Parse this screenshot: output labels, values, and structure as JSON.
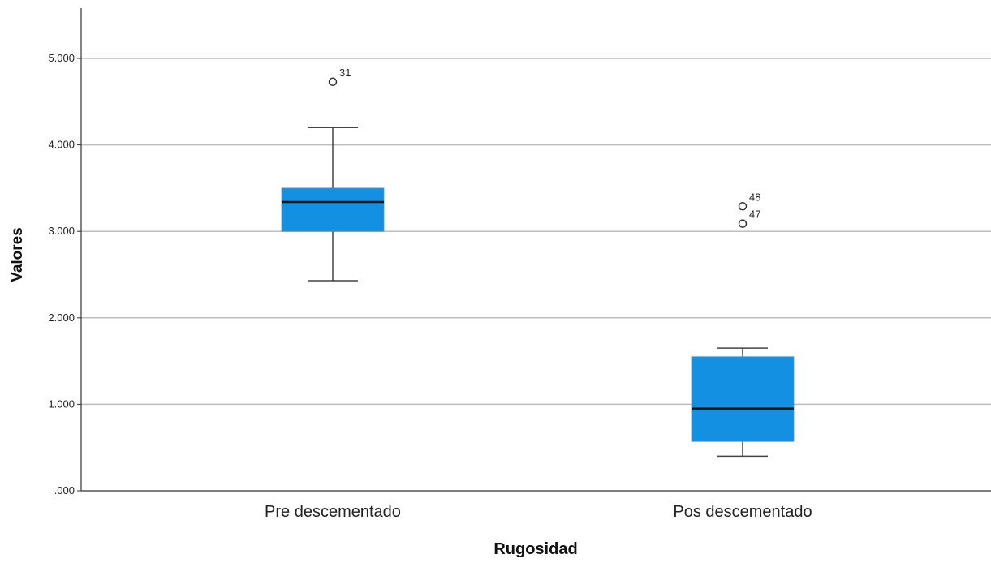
{
  "chart_data": {
    "type": "boxplot",
    "xlabel": "Rugosidad",
    "ylabel": "Valores",
    "ylim": [
      0,
      5.5
    ],
    "yticks": [
      0,
      1,
      2,
      3,
      4,
      5
    ],
    "ytick_labels": [
      ".000",
      "1.000",
      "2.000",
      "3.000",
      "4.000",
      "5.000"
    ],
    "grid": "horizontal",
    "box_color": "#1490E3",
    "categories": [
      "Pre descementado",
      "Pos descementado"
    ],
    "boxes": [
      {
        "category": "Pre descementado",
        "whisker_low": 2.43,
        "q1": 3.0,
        "median": 3.34,
        "q3": 3.5,
        "whisker_high": 4.2,
        "outliers": [
          {
            "label": "31",
            "value": 4.73
          }
        ]
      },
      {
        "category": "Pos descementado",
        "whisker_low": 0.4,
        "q1": 0.57,
        "median": 0.95,
        "q3": 1.55,
        "whisker_high": 1.65,
        "outliers": [
          {
            "label": "48",
            "value": 3.29
          },
          {
            "label": "47",
            "value": 3.09
          }
        ]
      }
    ]
  }
}
